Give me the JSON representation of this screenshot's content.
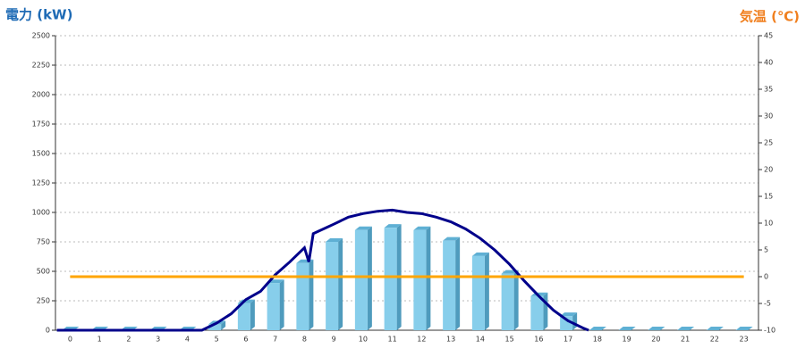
{
  "chart_data": {
    "type": "bar",
    "y_label": "電力 (kW)",
    "y2_label": "気温 (℃)",
    "categories": [
      "0",
      "1",
      "2",
      "3",
      "4",
      "5",
      "6",
      "7",
      "8",
      "9",
      "10",
      "11",
      "12",
      "13",
      "14",
      "15",
      "16",
      "17",
      "18",
      "19",
      "20",
      "21",
      "22",
      "23"
    ],
    "ylim": [
      0,
      2500
    ],
    "yticks": [
      0,
      250,
      500,
      750,
      1000,
      1250,
      1500,
      1750,
      2000,
      2250,
      2500
    ],
    "y2lim": [
      -10,
      45
    ],
    "y2ticks": [
      -10,
      -5,
      0,
      5,
      10,
      15,
      20,
      25,
      30,
      35,
      40,
      45
    ],
    "grid": true,
    "series": [
      {
        "type": "bar",
        "color": "#87ceeb",
        "values": [
          0,
          0,
          0,
          0,
          0,
          50,
          230,
          400,
          570,
          750,
          850,
          870,
          850,
          760,
          630,
          480,
          290,
          120,
          0,
          0,
          0,
          0,
          0,
          0
        ]
      },
      {
        "type": "line",
        "color": "#00008b",
        "x": [
          -0.45,
          0,
          1,
          2,
          3,
          4,
          4.5,
          5,
          5.5,
          6,
          6.5,
          7,
          7.5,
          8,
          8.15,
          8.3,
          9,
          9.5,
          10,
          10.5,
          11,
          11.5,
          12,
          12.5,
          13,
          13.5,
          14,
          14.5,
          15,
          15.5,
          16,
          16.5,
          17,
          17.5,
          17.7
        ],
        "values": [
          0,
          0,
          0,
          0,
          0,
          0,
          0,
          60,
          140,
          260,
          330,
          470,
          580,
          700,
          580,
          820,
          900,
          960,
          990,
          1010,
          1020,
          1000,
          990,
          960,
          920,
          860,
          780,
          680,
          560,
          420,
          290,
          170,
          80,
          20,
          0
        ]
      },
      {
        "type": "line",
        "axis": "y2",
        "color": "#ffa500",
        "values": [
          0,
          0,
          0,
          0,
          0,
          0,
          0,
          0,
          0,
          0,
          0,
          0,
          0,
          0,
          0,
          0,
          0,
          0,
          0,
          0,
          0,
          0,
          0,
          0
        ]
      }
    ]
  }
}
